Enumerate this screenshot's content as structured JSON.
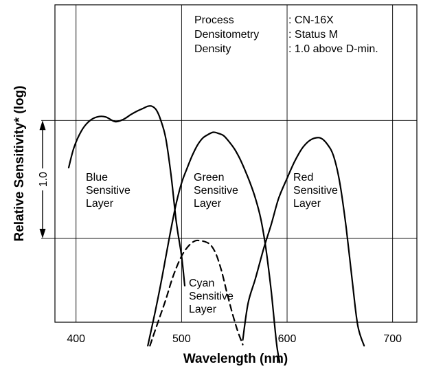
{
  "chart_data": {
    "type": "line",
    "xlabel": "Wavelength (nm)",
    "ylabel": "Relative Sensitivity* (log)",
    "xlim": [
      380,
      723
    ],
    "x_ticks": [
      "400",
      "500",
      "600",
      "700"
    ],
    "x_tick_values": [
      400,
      500,
      600,
      700
    ],
    "grid": true,
    "info_box": {
      "rows": [
        {
          "key": "Process",
          "value": ": CN-16X"
        },
        {
          "key": "Densitometry",
          "value": ": Status M"
        },
        {
          "key": "Density",
          "value": ": 1.0 above D-min."
        }
      ]
    },
    "scale_bar": {
      "label": "1.0",
      "log_units": 1.0
    },
    "y_range_log": [
      -1.71,
      0.98
    ],
    "series": [
      {
        "name": "Blue Sensitive Layer",
        "label_lines": [
          "Blue",
          "Sensitive",
          "Layer"
        ],
        "style": "solid",
        "x": [
          393,
          398,
          405,
          412,
          420,
          428,
          437,
          445,
          452,
          458,
          463,
          468,
          472,
          476,
          480,
          485,
          490,
          495,
          500,
          503
        ],
        "y": [
          -0.4,
          -0.23,
          -0.09,
          -0.01,
          0.03,
          0.03,
          -0.01,
          0.01,
          0.05,
          0.08,
          0.1,
          0.12,
          0.12,
          0.09,
          0.01,
          -0.15,
          -0.46,
          -0.86,
          -1.15,
          -1.4
        ]
      },
      {
        "name": "Green Sensitive Layer",
        "label_lines": [
          "Green",
          "Sensitive",
          "Layer"
        ],
        "style": "solid",
        "x": [
          468,
          475,
          480,
          485,
          490,
          495,
          500,
          505,
          510,
          515,
          520,
          525,
          530,
          535,
          540,
          545,
          550,
          555,
          560,
          565,
          570,
          575,
          580,
          585,
          590,
          593
        ],
        "y": [
          -1.91,
          -1.62,
          -1.4,
          -1.16,
          -0.92,
          -0.7,
          -0.53,
          -0.41,
          -0.3,
          -0.21,
          -0.15,
          -0.12,
          -0.1,
          -0.11,
          -0.13,
          -0.18,
          -0.24,
          -0.32,
          -0.42,
          -0.53,
          -0.66,
          -0.83,
          -1.09,
          -1.45,
          -1.89,
          -2.05
        ]
      },
      {
        "name": "Red Sensitive Layer",
        "label_lines": [
          "Red",
          "Sensitive",
          "Layer"
        ],
        "style": "solid",
        "x": [
          558,
          563,
          570,
          578,
          585,
          592,
          600,
          607,
          614,
          620,
          626,
          632,
          638,
          644,
          650,
          656,
          662,
          667,
          673
        ],
        "y": [
          -1.86,
          -1.55,
          -1.34,
          -1.08,
          -0.88,
          -0.66,
          -0.49,
          -0.35,
          -0.24,
          -0.18,
          -0.15,
          -0.15,
          -0.2,
          -0.3,
          -0.53,
          -0.91,
          -1.38,
          -1.74,
          -1.91
        ]
      },
      {
        "name": "Cyan Sensitive Layer",
        "label_lines": [
          "Cyan",
          "Sensitive",
          "Layer"
        ],
        "style": "dashed",
        "x": [
          470,
          478,
          485,
          492,
          500,
          507,
          513,
          518,
          523,
          528,
          533,
          538,
          543,
          548,
          553,
          558
        ],
        "y": [
          -1.91,
          -1.7,
          -1.52,
          -1.32,
          -1.15,
          -1.06,
          -1.02,
          -1.02,
          -1.03,
          -1.06,
          -1.14,
          -1.28,
          -1.46,
          -1.63,
          -1.78,
          -1.9
        ]
      }
    ]
  }
}
